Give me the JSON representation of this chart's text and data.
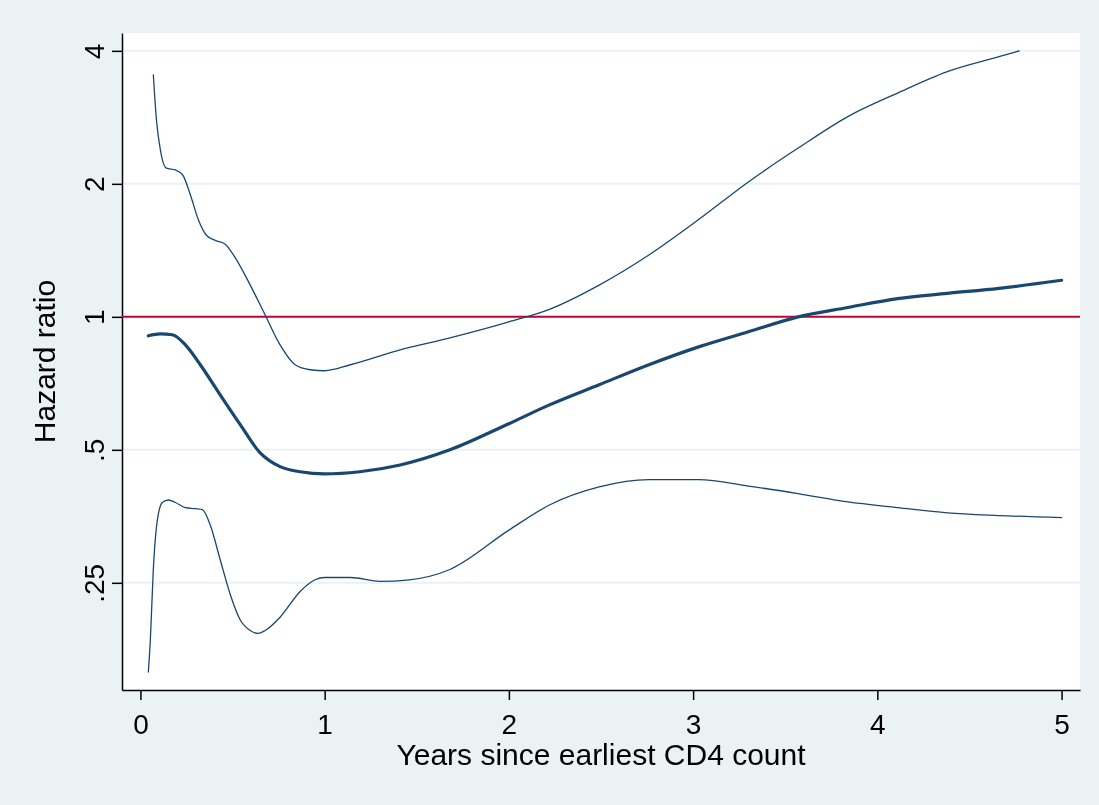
{
  "chart_data": {
    "type": "line",
    "xlabel": "Years since earliest CD4 count",
    "ylabel": "Hazard ratio",
    "log": "y",
    "grid": "y",
    "marker": "none",
    "line_style": "solid",
    "xlim": [
      -0.1,
      5.1
    ],
    "xticks": [
      0,
      1,
      2,
      3,
      4,
      5
    ],
    "ylim": [
      0.143,
      4.39
    ],
    "yticks": [
      {
        "value": 0.25,
        "label": ".25"
      },
      {
        "value": 0.5,
        "label": ".5"
      },
      1,
      2,
      4
    ],
    "ref_lines": [
      {
        "axis": "y",
        "value": 1,
        "color": "#c10534"
      }
    ],
    "series": [
      {
        "color": "#1a476f",
        "x": [
          0.043,
          0.108,
          0.173,
          0.244,
          0.325,
          0.433,
          0.542,
          0.65,
          0.758,
          0.867,
          1.0,
          1.19,
          1.41,
          1.68,
          2.0,
          2.22,
          2.49,
          2.76,
          3.03,
          3.3,
          3.57,
          3.84,
          4.11,
          4.38,
          4.66,
          5.0
        ],
        "values": [
          0.906,
          0.915,
          0.911,
          0.864,
          0.779,
          0.666,
          0.57,
          0.492,
          0.458,
          0.446,
          0.441,
          0.446,
          0.462,
          0.5,
          0.573,
          0.632,
          0.702,
          0.779,
          0.855,
          0.925,
          1.0,
          1.05,
          1.1,
          1.13,
          1.16,
          1.21
        ]
      },
      {
        "color": "#1a476f",
        "x": [
          0.07,
          0.087,
          0.108,
          0.141,
          0.19,
          0.228,
          0.271,
          0.314,
          0.358,
          0.406,
          0.46,
          0.515,
          0.596,
          0.677,
          0.758,
          0.84,
          0.921,
          1.0,
          1.14,
          1.41,
          1.68,
          2.0,
          2.22,
          2.49,
          2.76,
          3.03,
          3.3,
          3.57,
          3.84,
          4.11,
          4.38,
          4.66,
          4.77
        ],
        "values": [
          3.53,
          2.79,
          2.39,
          2.17,
          2.15,
          2.1,
          1.89,
          1.66,
          1.53,
          1.49,
          1.46,
          1.36,
          1.18,
          1.01,
          0.864,
          0.779,
          0.759,
          0.755,
          0.779,
          0.842,
          0.896,
          0.974,
          1.04,
          1.18,
          1.38,
          1.66,
          2.02,
          2.41,
          2.84,
          3.21,
          3.59,
          3.88,
          4.0
        ]
      },
      {
        "color": "#1a476f",
        "x": [
          0.043,
          0.054,
          0.07,
          0.092,
          0.119,
          0.152,
          0.19,
          0.244,
          0.298,
          0.336,
          0.379,
          0.433,
          0.488,
          0.542,
          0.596,
          0.639,
          0.677,
          0.758,
          0.867,
          0.948,
          1.0,
          1.14,
          1.3,
          1.46,
          1.68,
          2.0,
          2.22,
          2.49,
          2.76,
          3.03,
          3.3,
          3.57,
          3.84,
          4.11,
          4.38,
          4.66,
          5.0
        ],
        "values": [
          0.157,
          0.186,
          0.268,
          0.347,
          0.38,
          0.385,
          0.38,
          0.37,
          0.368,
          0.366,
          0.338,
          0.282,
          0.235,
          0.206,
          0.195,
          0.192,
          0.195,
          0.209,
          0.239,
          0.254,
          0.257,
          0.257,
          0.252,
          0.254,
          0.268,
          0.329,
          0.375,
          0.412,
          0.428,
          0.428,
          0.414,
          0.398,
          0.381,
          0.37,
          0.36,
          0.355,
          0.351
        ]
      }
    ]
  }
}
